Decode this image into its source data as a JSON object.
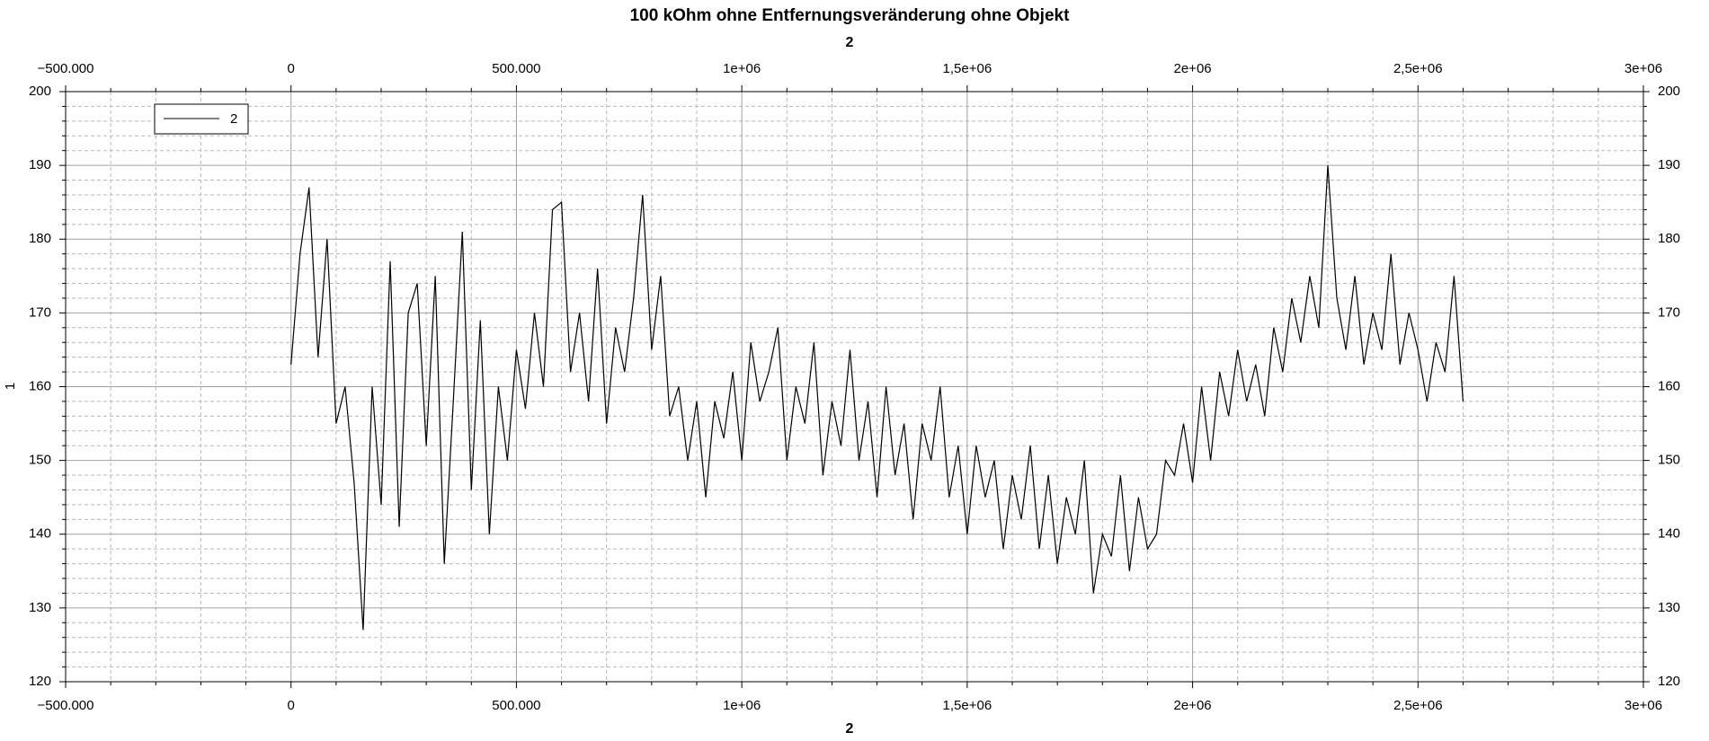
{
  "chart_data": {
    "type": "line",
    "title": "100 kOhm ohne Entfernungsveränderung ohne Objekt",
    "x_label": "2",
    "y_label": "1",
    "x": [
      0,
      20000,
      40000,
      60000,
      80000,
      100000,
      120000,
      140000,
      160000,
      180000,
      200000,
      220000,
      240000,
      260000,
      280000,
      300000,
      320000,
      340000,
      360000,
      380000,
      400000,
      420000,
      440000,
      460000,
      480000,
      500000,
      520000,
      540000,
      560000,
      580000,
      600000,
      620000,
      640000,
      660000,
      680000,
      700000,
      720000,
      740000,
      760000,
      780000,
      800000,
      820000,
      840000,
      860000,
      880000,
      900000,
      920000,
      940000,
      960000,
      980000,
      1000000,
      1020000,
      1040000,
      1060000,
      1080000,
      1100000,
      1120000,
      1140000,
      1160000,
      1180000,
      1200000,
      1220000,
      1240000,
      1260000,
      1280000,
      1300000,
      1320000,
      1340000,
      1360000,
      1380000,
      1400000,
      1420000,
      1440000,
      1460000,
      1480000,
      1500000,
      1520000,
      1540000,
      1560000,
      1580000,
      1600000,
      1620000,
      1640000,
      1660000,
      1680000,
      1700000,
      1720000,
      1740000,
      1760000,
      1780000,
      1800000,
      1820000,
      1840000,
      1860000,
      1880000,
      1900000,
      1920000,
      1940000,
      1960000,
      1980000,
      2000000,
      2020000,
      2040000,
      2060000,
      2080000,
      2100000,
      2120000,
      2140000,
      2160000,
      2180000,
      2200000,
      2220000,
      2240000,
      2260000,
      2280000,
      2300000,
      2320000,
      2340000,
      2360000,
      2380000,
      2400000,
      2420000,
      2440000,
      2460000,
      2480000,
      2500000,
      2520000,
      2540000,
      2560000,
      2580000,
      2600000
    ],
    "series": [
      {
        "name": "2",
        "color": "#000000",
        "values": [
          163,
          178,
          187,
          164,
          180,
          155,
          160,
          147,
          127,
          160,
          144,
          177,
          141,
          170,
          174,
          152,
          175,
          136,
          158,
          181,
          146,
          169,
          140,
          160,
          150,
          165,
          157,
          170,
          160,
          184,
          185,
          162,
          170,
          158,
          176,
          155,
          168,
          162,
          172,
          186,
          165,
          175,
          156,
          160,
          150,
          158,
          145,
          158,
          153,
          162,
          150,
          166,
          158,
          162,
          168,
          150,
          160,
          155,
          166,
          148,
          158,
          152,
          165,
          150,
          158,
          145,
          160,
          148,
          155,
          142,
          155,
          150,
          160,
          145,
          152,
          140,
          152,
          145,
          150,
          138,
          148,
          142,
          152,
          138,
          148,
          136,
          145,
          140,
          150,
          132,
          140,
          137,
          148,
          135,
          145,
          138,
          140,
          150,
          148,
          155,
          147,
          160,
          150,
          162,
          156,
          165,
          158,
          163,
          156,
          168,
          162,
          172,
          166,
          175,
          168,
          190,
          172,
          165,
          175,
          163,
          170,
          165,
          178,
          163,
          170,
          165,
          158,
          166,
          162,
          175,
          158
        ]
      }
    ],
    "xlim": [
      -500000,
      3000000
    ],
    "xticks": [
      {
        "value": -500000,
        "label": "−500.000"
      },
      0,
      {
        "value": 500000,
        "label": "500.000"
      },
      {
        "value": 1000000,
        "label": "1e+06"
      },
      {
        "value": 1500000,
        "label": "1,5e+06"
      },
      {
        "value": 2000000,
        "label": "2e+06"
      },
      {
        "value": 2500000,
        "label": "2,5e+06"
      },
      {
        "value": 3000000,
        "label": "3e+06"
      }
    ],
    "ylim": [
      120,
      200
    ],
    "yticks": [
      120,
      130,
      140,
      150,
      160,
      170,
      180,
      190,
      200
    ],
    "grid": true,
    "minor_grid": true,
    "legend": "upper left"
  }
}
